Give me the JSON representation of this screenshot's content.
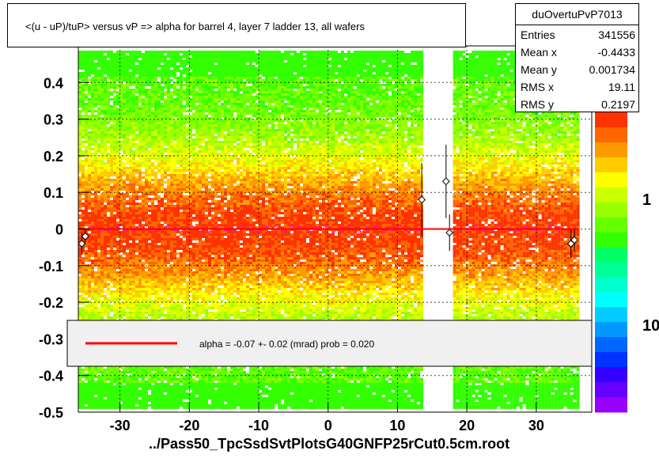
{
  "title": "<(u - uP)/tuP> versus   vP => alpha for barrel 4, layer 7 ladder 13, all wafers",
  "stats": {
    "name": "duOvertuPvP7013",
    "rows": [
      {
        "label": "Entries",
        "value": "341556"
      },
      {
        "label": "Mean x",
        "value": "-0.4433"
      },
      {
        "label": "Mean y",
        "value": "0.001734"
      },
      {
        "label": "RMS x",
        "value": "19.11"
      },
      {
        "label": "RMS y",
        "value": "0.2197"
      }
    ]
  },
  "fit_text": "alpha =   -0.07 +-  0.02 (mrad) prob = 0.020",
  "footer": "../Pass50_TpcSsdSvtPlotsG40GNFP25rCut0.5cm.root",
  "colors": {
    "fit_line": "#ff0000",
    "marker": "#ff00ff"
  },
  "chart_data": {
    "type": "heatmap",
    "title": "<(u - uP)/tuP> versus   vP => alpha for barrel 4, layer 7 ladder 13, all wafers",
    "xlim": [
      -36,
      38
    ],
    "ylim": [
      -0.5,
      0.5
    ],
    "x_ticks": [
      -30,
      -20,
      -10,
      0,
      10,
      20,
      30
    ],
    "x_tick_labels": [
      "-30",
      "-20",
      "-10",
      "0",
      "10",
      "20",
      "30"
    ],
    "y_ticks": [
      -0.5,
      -0.4,
      -0.3,
      -0.2,
      -0.1,
      0,
      0.1,
      0.2,
      0.3,
      0.4
    ],
    "y_tick_labels": [
      "-0.5",
      "-0.4",
      "-0.3",
      "-0.2",
      "-0.1",
      "0",
      "0.1",
      "0.2",
      "0.3",
      "0.4"
    ],
    "grid": true,
    "z_scale": "log",
    "z_tick_labels": [
      "1",
      "10"
    ],
    "filled_x_ranges": [
      [
        -36,
        13.5
      ],
      [
        18,
        36
      ]
    ],
    "fit_line": {
      "x": [
        -36,
        36
      ],
      "y": [
        0,
        0
      ]
    },
    "profile_points": [
      {
        "x": -35.5,
        "y": -0.04,
        "err": 0.03
      },
      {
        "x": -35,
        "y": -0.02,
        "err": 0.02
      },
      {
        "x": 13.5,
        "y": 0.08,
        "err": 0.1
      },
      {
        "x": 17,
        "y": 0.13,
        "err": 0.1
      },
      {
        "x": 17.5,
        "y": -0.01,
        "err": 0.05
      },
      {
        "x": 35,
        "y": -0.04,
        "err": 0.04
      },
      {
        "x": 35.5,
        "y": -0.03,
        "err": 0.03
      }
    ]
  }
}
